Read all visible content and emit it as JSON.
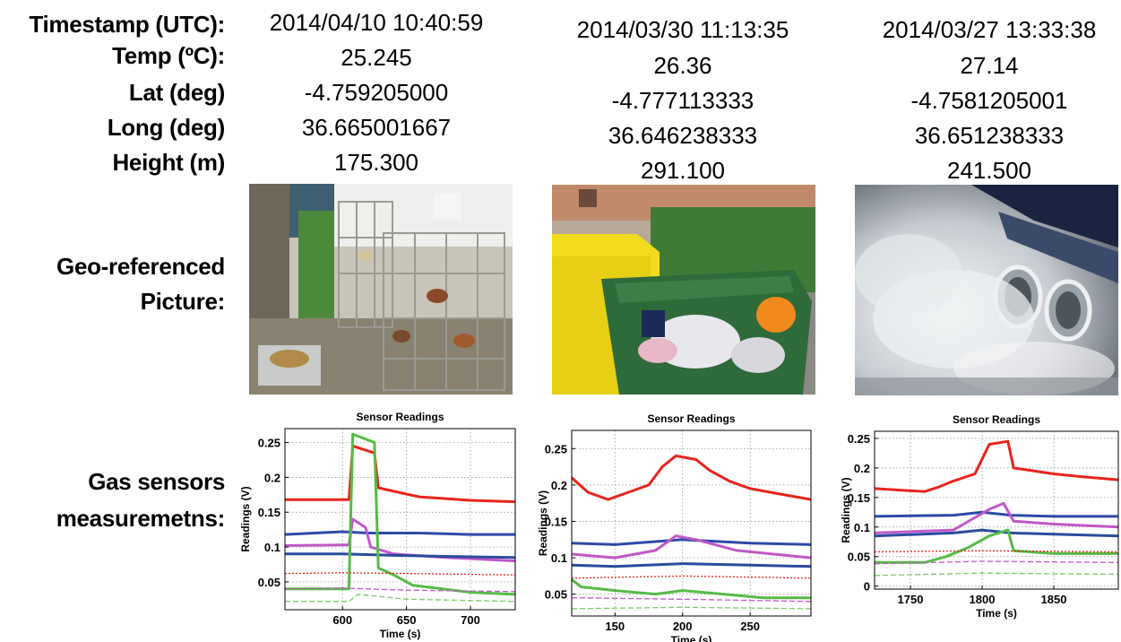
{
  "labels": {
    "timestamp": "Timestamp (UTC):",
    "temp": "Temp (ºC):",
    "lat": "Lat (deg)",
    "long": "Long (deg)",
    "height": "Height (m)",
    "picture_1": "Geo-referenced",
    "picture_2": "Picture:",
    "gas_1": "Gas sensors",
    "gas_2": "measuremetns:"
  },
  "samples": [
    {
      "timestamp": "2014/04/10 10:40:59",
      "temp": "25.245",
      "lat": "-4.759205000",
      "long": "36.665001667",
      "height": "175.300",
      "picture_icon": "market-cages-photo"
    },
    {
      "timestamp": "2014/03/30 11:13:35",
      "temp": "26.36",
      "lat": "-4.777113333",
      "long": "36.646238333",
      "height": "291.100",
      "picture_icon": "garbage-containers-photo"
    },
    {
      "timestamp": "2014/03/27 13:33:38",
      "temp": "27.14",
      "lat": "-4.7581205001",
      "long": "36.651238333",
      "height": "241.500",
      "picture_icon": "exhaust-smoke-photo"
    }
  ],
  "chart_data": [
    {
      "type": "line",
      "title": "Sensor Readings",
      "xlabel": "Time (s)",
      "ylabel": "Readings (V)",
      "xlim": [
        555,
        735
      ],
      "ylim": [
        0.01,
        0.27
      ],
      "xticks": [
        600,
        650,
        700
      ],
      "yticks": [
        0.05,
        0.1,
        0.15,
        0.2,
        0.25
      ],
      "ytick_labels": [
        "0.05",
        "0.1",
        "0.15",
        "0.2",
        "0.25"
      ],
      "grid": true,
      "series": [
        {
          "color": "#e8241c",
          "style": "solid",
          "x": [
            555,
            605,
            608,
            625,
            628,
            640,
            660,
            700,
            735
          ],
          "y": [
            0.168,
            0.168,
            0.245,
            0.235,
            0.185,
            0.18,
            0.172,
            0.167,
            0.165
          ]
        },
        {
          "color": "#2c4aa8",
          "style": "solid",
          "x": [
            555,
            600,
            620,
            660,
            700,
            735
          ],
          "y": [
            0.118,
            0.122,
            0.12,
            0.12,
            0.118,
            0.118
          ]
        },
        {
          "color": "#c058c8",
          "style": "solid",
          "x": [
            555,
            605,
            608,
            618,
            622,
            640,
            680,
            735
          ],
          "y": [
            0.102,
            0.103,
            0.14,
            0.128,
            0.1,
            0.09,
            0.085,
            0.08
          ]
        },
        {
          "color": "#2a4b9e",
          "style": "solid",
          "x": [
            555,
            600,
            640,
            700,
            735
          ],
          "y": [
            0.09,
            0.09,
            0.088,
            0.086,
            0.085
          ]
        },
        {
          "color": "#55bb44",
          "style": "solid",
          "x": [
            555,
            605,
            608,
            625,
            628,
            640,
            655,
            700,
            735
          ],
          "y": [
            0.04,
            0.04,
            0.262,
            0.25,
            0.07,
            0.06,
            0.045,
            0.035,
            0.032
          ]
        },
        {
          "color": "#e8241c",
          "style": "dotted",
          "x": [
            555,
            600,
            650,
            735
          ],
          "y": [
            0.062,
            0.063,
            0.062,
            0.06
          ]
        },
        {
          "color": "#c058c8",
          "style": "dashed",
          "x": [
            555,
            600,
            650,
            735
          ],
          "y": [
            0.04,
            0.041,
            0.038,
            0.036
          ]
        },
        {
          "color": "#7acb6a",
          "style": "dashed",
          "x": [
            555,
            605,
            612,
            650,
            735
          ],
          "y": [
            0.022,
            0.022,
            0.032,
            0.025,
            0.022
          ]
        }
      ]
    },
    {
      "type": "line",
      "title": "Sensor Readings",
      "xlabel": "Time (s)",
      "ylabel": "Readings (V)",
      "xlim": [
        118,
        295
      ],
      "ylim": [
        0.02,
        0.275
      ],
      "xticks": [
        150,
        200,
        250
      ],
      "yticks": [
        0.05,
        0.1,
        0.15,
        0.2,
        0.25
      ],
      "ytick_labels": [
        "0.05",
        "0.1",
        "0.15",
        "0.2",
        "0.25"
      ],
      "grid": true,
      "series": [
        {
          "color": "#e8241c",
          "style": "solid",
          "x": [
            118,
            130,
            145,
            160,
            175,
            185,
            195,
            210,
            220,
            235,
            250,
            265,
            280,
            295
          ],
          "y": [
            0.21,
            0.19,
            0.18,
            0.19,
            0.2,
            0.225,
            0.24,
            0.235,
            0.22,
            0.205,
            0.195,
            0.19,
            0.185,
            0.18
          ]
        },
        {
          "color": "#2c4aa8",
          "style": "solid",
          "x": [
            118,
            150,
            200,
            250,
            295
          ],
          "y": [
            0.12,
            0.118,
            0.125,
            0.12,
            0.118
          ]
        },
        {
          "color": "#c058c8",
          "style": "solid",
          "x": [
            118,
            150,
            180,
            195,
            210,
            240,
            295
          ],
          "y": [
            0.105,
            0.1,
            0.11,
            0.13,
            0.125,
            0.11,
            0.1
          ]
        },
        {
          "color": "#2a4b9e",
          "style": "solid",
          "x": [
            118,
            150,
            200,
            250,
            295
          ],
          "y": [
            0.09,
            0.088,
            0.092,
            0.09,
            0.088
          ]
        },
        {
          "color": "#55bb44",
          "style": "solid",
          "x": [
            118,
            125,
            150,
            180,
            200,
            230,
            260,
            295
          ],
          "y": [
            0.07,
            0.06,
            0.055,
            0.05,
            0.055,
            0.05,
            0.045,
            0.045
          ]
        },
        {
          "color": "#e8241c",
          "style": "dotted",
          "x": [
            118,
            200,
            295
          ],
          "y": [
            0.072,
            0.075,
            0.072
          ]
        },
        {
          "color": "#c058c8",
          "style": "dashed",
          "x": [
            118,
            200,
            295
          ],
          "y": [
            0.045,
            0.043,
            0.04
          ]
        },
        {
          "color": "#7acb6a",
          "style": "dashed",
          "x": [
            118,
            200,
            295
          ],
          "y": [
            0.03,
            0.032,
            0.03
          ]
        }
      ]
    },
    {
      "type": "line",
      "title": "Sensor Readings",
      "xlabel": "Time (s)",
      "ylabel": "Readings (V)",
      "xlim": [
        1725,
        1895
      ],
      "ylim": [
        -0.005,
        0.262
      ],
      "xticks": [
        1750,
        1800,
        1850
      ],
      "yticks": [
        0,
        0.05,
        0.1,
        0.15,
        0.2,
        0.25
      ],
      "ytick_labels": [
        "0",
        "0.05",
        "0.1",
        "0.15",
        "0.2",
        "0.25"
      ],
      "grid": true,
      "series": [
        {
          "color": "#e8241c",
          "style": "solid",
          "x": [
            1725,
            1760,
            1770,
            1780,
            1795,
            1805,
            1818,
            1822,
            1850,
            1870,
            1895
          ],
          "y": [
            0.165,
            0.16,
            0.168,
            0.178,
            0.19,
            0.24,
            0.245,
            0.2,
            0.19,
            0.185,
            0.18
          ]
        },
        {
          "color": "#2c4aa8",
          "style": "solid",
          "x": [
            1725,
            1780,
            1800,
            1820,
            1850,
            1895
          ],
          "y": [
            0.118,
            0.12,
            0.125,
            0.12,
            0.118,
            0.118
          ]
        },
        {
          "color": "#c058c8",
          "style": "solid",
          "x": [
            1725,
            1780,
            1805,
            1815,
            1822,
            1850,
            1895
          ],
          "y": [
            0.09,
            0.095,
            0.13,
            0.14,
            0.11,
            0.105,
            0.1
          ]
        },
        {
          "color": "#2a4b9e",
          "style": "solid",
          "x": [
            1725,
            1780,
            1800,
            1820,
            1850,
            1895
          ],
          "y": [
            0.085,
            0.09,
            0.095,
            0.09,
            0.088,
            0.085
          ]
        },
        {
          "color": "#55bb44",
          "style": "solid",
          "x": [
            1725,
            1760,
            1775,
            1790,
            1805,
            1818,
            1822,
            1850,
            1895
          ],
          "y": [
            0.04,
            0.04,
            0.05,
            0.065,
            0.085,
            0.095,
            0.06,
            0.055,
            0.055
          ]
        },
        {
          "color": "#e8241c",
          "style": "dotted",
          "x": [
            1725,
            1800,
            1895
          ],
          "y": [
            0.058,
            0.06,
            0.058
          ]
        },
        {
          "color": "#c058c8",
          "style": "dashed",
          "x": [
            1725,
            1800,
            1895
          ],
          "y": [
            0.038,
            0.042,
            0.04
          ]
        },
        {
          "color": "#7acb6a",
          "style": "dashed",
          "x": [
            1725,
            1800,
            1895
          ],
          "y": [
            0.018,
            0.022,
            0.02
          ]
        }
      ]
    }
  ]
}
